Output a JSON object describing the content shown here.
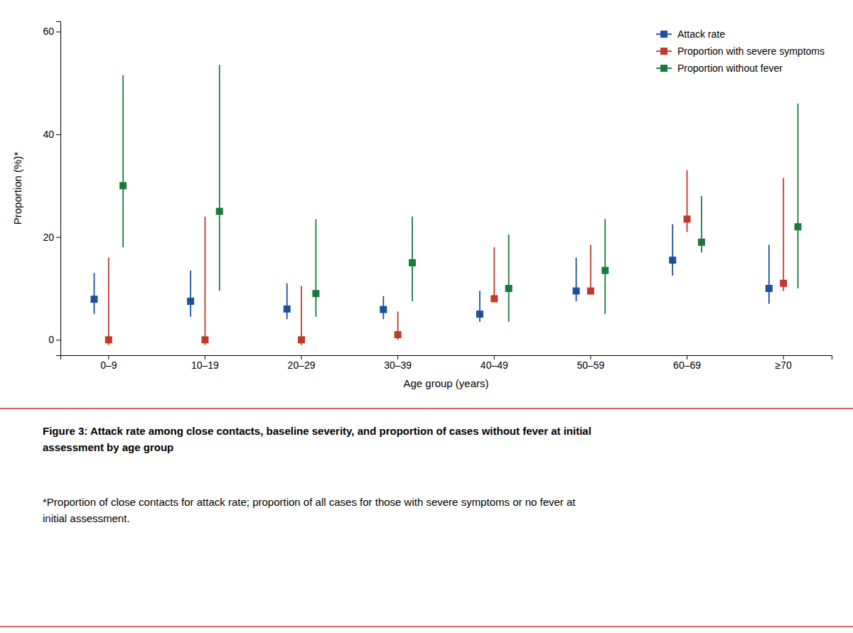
{
  "chart_data": {
    "type": "errorbar",
    "categories": [
      "0–9",
      "10–19",
      "20–29",
      "30–39",
      "40–49",
      "50–59",
      "60–69",
      "≥70"
    ],
    "series": [
      {
        "name": "Attack rate",
        "color": "#1c4f9c",
        "marker": "square",
        "values": [
          7.9,
          7.5,
          6.0,
          5.9,
          5.0,
          9.5,
          15.5,
          10.0
        ],
        "ci_low": [
          5.0,
          4.5,
          4.0,
          4.0,
          3.5,
          7.5,
          12.5,
          7.0
        ],
        "ci_high": [
          13.0,
          13.5,
          11.0,
          8.5,
          9.5,
          16.0,
          22.5,
          18.5
        ]
      },
      {
        "name": "Proportion with severe symptoms",
        "color": "#c0392b",
        "marker": "square",
        "values": [
          0.0,
          0.0,
          0.0,
          1.0,
          8.0,
          9.5,
          23.5,
          11.0
        ],
        "ci_low": [
          -1.0,
          -1.0,
          -1.0,
          0.0,
          7.5,
          9.0,
          21.0,
          9.5
        ],
        "ci_high": [
          16.0,
          24.0,
          10.5,
          5.5,
          18.0,
          18.5,
          33.0,
          31.5
        ]
      },
      {
        "name": "Proportion without fever",
        "color": "#1a7a3c",
        "marker": "square",
        "values": [
          30.0,
          25.0,
          9.0,
          15.0,
          10.0,
          13.5,
          19.0,
          22.0
        ],
        "ci_low": [
          18.0,
          9.5,
          4.5,
          7.5,
          3.5,
          5.0,
          17.0,
          10.0
        ],
        "ci_high": [
          51.5,
          53.5,
          23.5,
          24.0,
          20.5,
          23.5,
          28.0,
          46.0
        ]
      }
    ],
    "xlabel": "Age group (years)",
    "ylabel": "Proportion (%)*",
    "ylim": [
      -3,
      62
    ],
    "yticks": [
      0,
      20,
      40,
      60
    ],
    "grid": false,
    "legend": "upper right",
    "annotations": [
      "Figure 3: Attack rate among close contacts, baseline severity, and proportion of cases without fever at initial\nassessment by age group",
      "*Proportion of close contacts for attack rate; proportion of all cases for those with severe symptoms or no fever at\ninitial assessment."
    ]
  }
}
